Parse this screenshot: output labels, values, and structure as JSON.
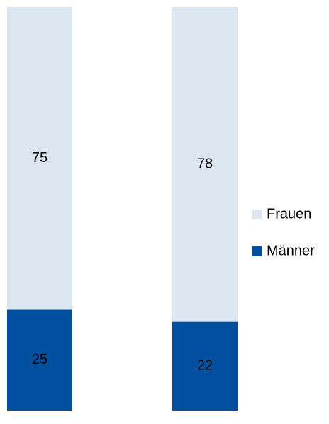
{
  "chart_data": {
    "type": "stacked-bar",
    "categories": [
      null,
      null
    ],
    "series": [
      {
        "name": "Männer",
        "color": "#0050a0",
        "values": [
          25,
          22
        ]
      },
      {
        "name": "Frauen",
        "color": "#dce6f0",
        "values": [
          75,
          78
        ]
      }
    ],
    "ylim": [
      0,
      100
    ],
    "legend": "right"
  }
}
